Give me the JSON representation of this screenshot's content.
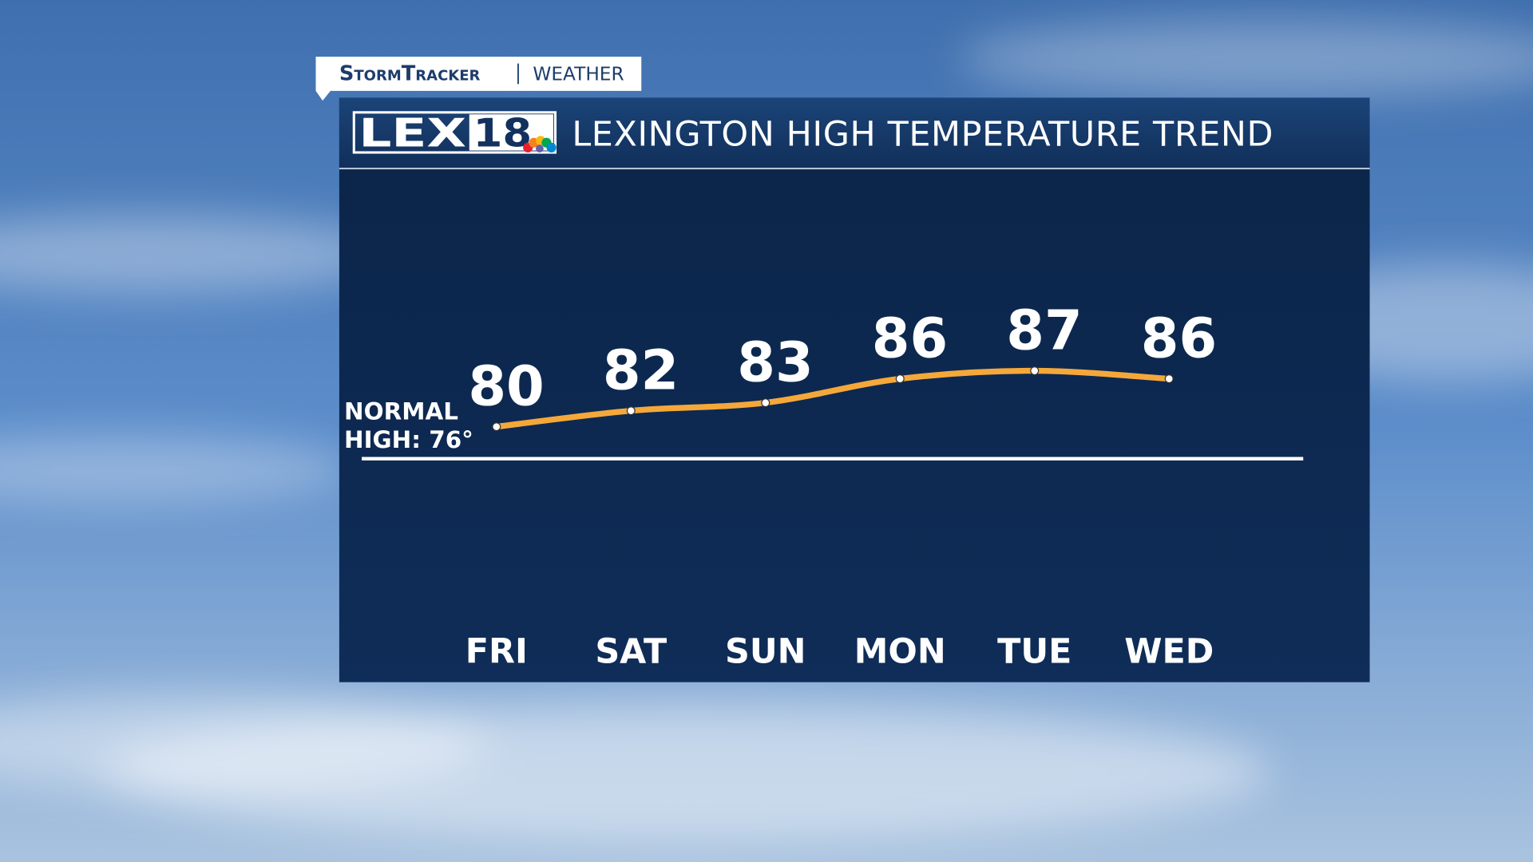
{
  "header": {
    "brand": "StormTracker",
    "section": "WEATHER",
    "logo": [
      "LEX",
      "18"
    ]
  },
  "chart_data": {
    "type": "line",
    "title": "LEXINGTON HIGH TEMPERATURE TREND",
    "categories": [
      "FRI",
      "SAT",
      "SUN",
      "MON",
      "TUE",
      "WED"
    ],
    "values": [
      80,
      82,
      83,
      86,
      87,
      86
    ],
    "color": "#f5a83a",
    "ylim": [
      55,
      112
    ],
    "reference_line": {
      "value": 76,
      "label": "NORMAL HIGH: 76°"
    }
  }
}
